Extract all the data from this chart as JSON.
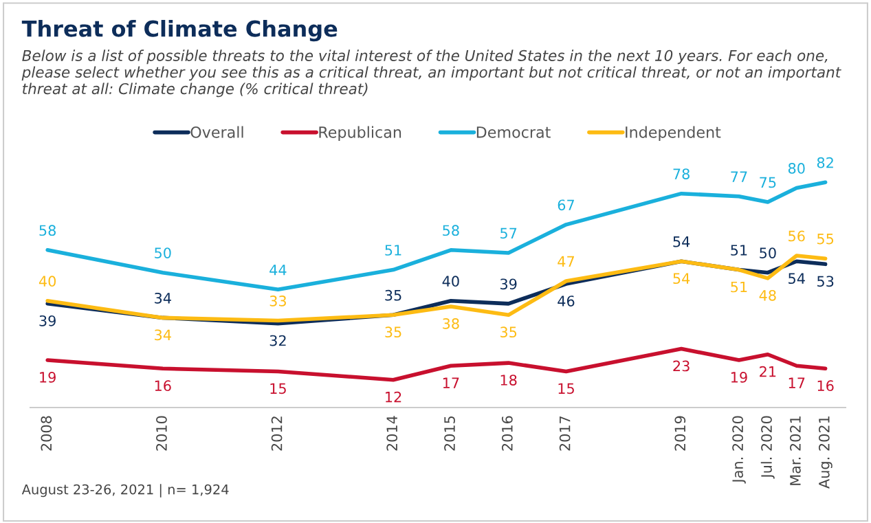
{
  "chart_data": {
    "type": "line",
    "title": "Threat of Climate Change",
    "subtitle": "Below is a list of possible threats to the vital interest of the United States in the next 10 years. For each one, please select whether you see this as a critical threat, an important but not critical threat, or not an important threat at all: Climate change (% critical threat)",
    "x": [
      2008,
      2010,
      2012,
      2014,
      2015,
      2016,
      2017,
      2019,
      2020.0,
      2020.5,
      2021.0,
      2021.5
    ],
    "xlim": [
      2007.7,
      2021.85
    ],
    "xticks": [
      {
        "value": 2008,
        "label": "2008"
      },
      {
        "value": 2010,
        "label": "2010"
      },
      {
        "value": 2012,
        "label": "2012"
      },
      {
        "value": 2014,
        "label": "2014"
      },
      {
        "value": 2015,
        "label": "2015"
      },
      {
        "value": 2016,
        "label": "2016"
      },
      {
        "value": 2017,
        "label": "2017"
      },
      {
        "value": 2019,
        "label": "2019"
      },
      {
        "value": 2020.0,
        "label": "Jan. 2020"
      },
      {
        "value": 2020.5,
        "label": "Jul. 2020"
      },
      {
        "value": 2021.0,
        "label": "Mar. 2021"
      },
      {
        "value": 2021.5,
        "label": "Aug. 2021"
      }
    ],
    "tick_labels": "x",
    "series": [
      {
        "name": "Overall",
        "color": "#0d2d5a",
        "values": [
          39,
          34,
          32,
          35,
          40,
          39,
          46,
          54,
          51,
          50,
          54,
          53
        ]
      },
      {
        "name": "Republican",
        "color": "#c8102e",
        "values": [
          19,
          16,
          15,
          12,
          17,
          18,
          15,
          23,
          19,
          21,
          17,
          16
        ]
      },
      {
        "name": "Democrat",
        "color": "#1ab0dc",
        "values": [
          58,
          50,
          44,
          51,
          58,
          57,
          67,
          78,
          77,
          75,
          80,
          82
        ]
      },
      {
        "name": "Independent",
        "color": "#fdbb13",
        "values": [
          40,
          34,
          33,
          35,
          38,
          35,
          47,
          54,
          51,
          48,
          56,
          55
        ]
      }
    ],
    "data_labels": true,
    "legend": "top",
    "grid": false,
    "marker": "none",
    "line_style": "solid",
    "annotations": [
      "August 23-26, 2021 | n= 1,924"
    ]
  }
}
